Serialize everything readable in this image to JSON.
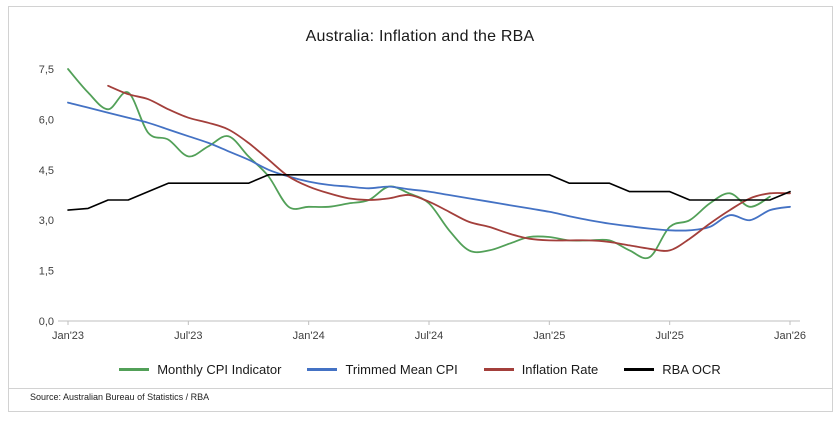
{
  "title": "Australia: Inflation and the RBA",
  "source": "Source: Australian Bureau of Statistics / RBA",
  "chart_data": {
    "type": "line",
    "title": "Australia: Inflation and the RBA",
    "xlabel": "",
    "ylabel": "",
    "ylim": [
      0,
      7.5
    ],
    "y_ticks": [
      0.0,
      1.5,
      3.0,
      4.5,
      6.0,
      7.5
    ],
    "y_tick_labels": [
      "0,0",
      "1,5",
      "3,0",
      "4,5",
      "6,0",
      "7,5"
    ],
    "x_tick_labels": [
      "Jan'23",
      "Jul'23",
      "Jan'24",
      "Jul'24",
      "Jan'25",
      "Jul'25",
      "Jan'26"
    ],
    "x_tick_positions": [
      0,
      6,
      12,
      18,
      24,
      30,
      36
    ],
    "n_points": 37,
    "grid": false,
    "legend_position": "bottom",
    "axis_color": "#bfbfbf",
    "series": [
      {
        "name": "Monthly CPI Indicator",
        "color": "#52A058",
        "smooth": true,
        "width": 1.8,
        "values": [
          7.5,
          6.8,
          6.3,
          6.8,
          5.6,
          5.4,
          4.9,
          5.2,
          5.5,
          4.9,
          4.3,
          3.4,
          3.4,
          3.4,
          3.5,
          3.6,
          4.0,
          3.8,
          3.5,
          2.7,
          2.1,
          2.1,
          2.3,
          2.5,
          2.5,
          2.4,
          2.4,
          2.4,
          2.1,
          1.9,
          2.8,
          3.0,
          3.5,
          3.8,
          3.4,
          3.7,
          null
        ]
      },
      {
        "name": "Trimmed Mean CPI",
        "color": "#4472C4",
        "smooth": true,
        "width": 1.8,
        "values": [
          6.5,
          6.35,
          6.2,
          6.05,
          5.9,
          5.7,
          5.5,
          5.3,
          5.05,
          4.8,
          4.5,
          4.3,
          4.15,
          4.05,
          4.0,
          3.95,
          4.0,
          3.92,
          3.85,
          3.75,
          3.65,
          3.55,
          3.45,
          3.35,
          3.25,
          3.12,
          3.0,
          2.9,
          2.82,
          2.75,
          2.7,
          2.7,
          2.8,
          3.15,
          3.0,
          3.3,
          3.4
        ]
      },
      {
        "name": "Inflation Rate",
        "color": "#A33F3B",
        "smooth": true,
        "width": 1.8,
        "values": [
          null,
          null,
          7.0,
          6.75,
          6.6,
          6.3,
          6.05,
          5.9,
          5.7,
          5.3,
          4.8,
          4.3,
          4.0,
          3.8,
          3.65,
          3.6,
          3.65,
          3.75,
          3.55,
          3.25,
          2.95,
          2.8,
          2.6,
          2.45,
          2.4,
          2.4,
          2.4,
          2.35,
          2.25,
          2.15,
          2.1,
          2.45,
          2.9,
          3.3,
          3.65,
          3.8,
          3.8
        ]
      },
      {
        "name": "RBA OCR",
        "color": "#000000",
        "smooth": false,
        "width": 1.6,
        "values": [
          3.3,
          3.35,
          3.6,
          3.6,
          3.85,
          4.1,
          4.1,
          4.1,
          4.1,
          4.1,
          4.35,
          4.35,
          4.35,
          4.35,
          4.35,
          4.35,
          4.35,
          4.35,
          4.35,
          4.35,
          4.35,
          4.35,
          4.35,
          4.35,
          4.35,
          4.1,
          4.1,
          4.1,
          3.85,
          3.85,
          3.85,
          3.6,
          3.6,
          3.6,
          3.6,
          3.6,
          3.85
        ]
      }
    ]
  }
}
